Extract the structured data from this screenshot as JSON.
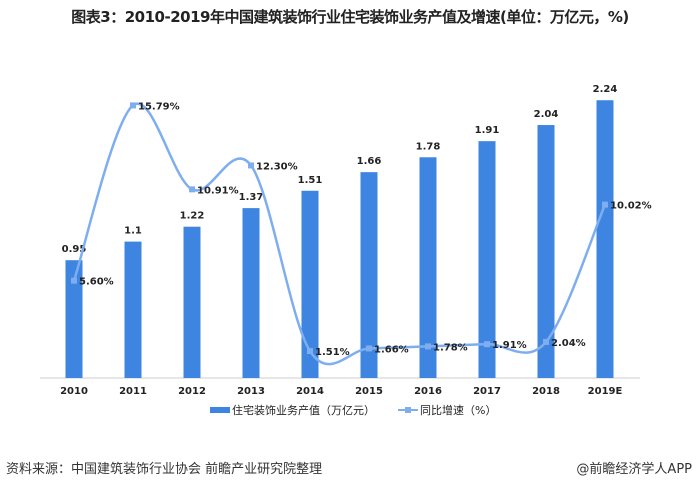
{
  "title": "图表3：2010-2019年中国建筑装饰行业住宅装饰业务产值及增速(单位：万亿元，%)",
  "chart_data": {
    "type": "bar+line",
    "categories": [
      "2010",
      "2011",
      "2012",
      "2013",
      "2014",
      "2015",
      "2016",
      "2017",
      "2018",
      "2019E"
    ],
    "series": [
      {
        "name": "住宅装饰业务产值（万亿元）",
        "type": "bar",
        "color": "#3d85e0",
        "values": [
          0.95,
          1.1,
          1.22,
          1.37,
          1.51,
          1.66,
          1.78,
          1.91,
          2.04,
          2.24
        ],
        "labels": [
          "0.95",
          "1.1",
          "1.22",
          "1.37",
          "1.51",
          "1.66",
          "1.78",
          "1.91",
          "2.04",
          "2.24"
        ]
      },
      {
        "name": "同比增速（%）",
        "type": "line",
        "color": "#7eaef0",
        "values": [
          5.6,
          15.79,
          10.91,
          12.3,
          1.51,
          1.66,
          1.78,
          1.91,
          2.04,
          10.02
        ],
        "labels": [
          "5.60%",
          "15.79%",
          "10.91%",
          "12.30%",
          "1.51%",
          "1.66%",
          "1.78%",
          "1.91%",
          "2.04%",
          "10.02%"
        ]
      }
    ],
    "legend": "bottom",
    "grid": false
  },
  "footer": {
    "source": "资料来源：中国建筑装饰行业协会 前瞻产业研究院整理",
    "credit": "@前瞻经济学人APP"
  }
}
